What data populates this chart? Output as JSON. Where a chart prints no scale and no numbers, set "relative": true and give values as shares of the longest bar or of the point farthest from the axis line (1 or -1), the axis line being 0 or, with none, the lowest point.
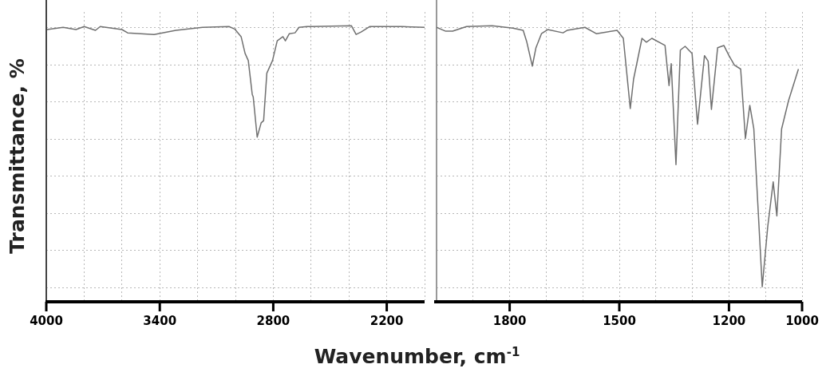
{
  "chart_data": [
    {
      "type": "line",
      "xlabel": "Wavenumber, cm$^{-1}$",
      "ylabel": "Transmittance, %",
      "relative": true,
      "grid": true,
      "color": "#707070",
      "xlim": [
        4000,
        2000
      ],
      "xticks": [
        4000,
        {
          "value": 3800,
          "label": null
        },
        {
          "value": 3600,
          "label": null
        },
        3400,
        {
          "value": 3200,
          "label": null
        },
        {
          "value": 3000,
          "label": null
        },
        2800,
        {
          "value": 2600,
          "label": null
        },
        {
          "value": 2400,
          "label": null
        },
        2200,
        {
          "value": 2000,
          "label": null
        }
      ],
      "x": [
        3996,
        3911,
        3843,
        3800,
        3740,
        3715,
        3600,
        3570,
        3430,
        3315,
        3174,
        3034,
        3004,
        2970,
        2949,
        2932,
        2911,
        2906,
        2885,
        2864,
        2851,
        2834,
        2804,
        2779,
        2749,
        2736,
        2715,
        2685,
        2664,
        2621,
        2600,
        2387,
        2362,
        2336,
        2289,
        2119,
        2000
      ],
      "values": [
        0.986,
        0.994,
        0.986,
        0.997,
        0.983,
        0.997,
        0.986,
        0.974,
        0.968,
        0.983,
        0.994,
        0.997,
        0.988,
        0.96,
        0.899,
        0.873,
        0.749,
        0.741,
        0.594,
        0.646,
        0.654,
        0.827,
        0.873,
        0.945,
        0.96,
        0.945,
        0.971,
        0.974,
        0.994,
        0.997,
        0.997,
        1,
        0.968,
        0.977,
        0.997,
        0.997,
        0.994
      ]
    },
    {
      "type": "line",
      "relative": true,
      "grid": true,
      "color": "#707070",
      "tick_labels": "x",
      "xlim": [
        2000,
        1000
      ],
      "xticks": [
        {
          "value": 2000,
          "label": null
        },
        {
          "value": 1900,
          "label": null
        },
        1800,
        {
          "value": 1700,
          "label": null
        },
        {
          "value": 1600,
          "label": null
        },
        1500,
        {
          "value": 1400,
          "label": null
        },
        {
          "value": 1300,
          "label": null
        },
        1200,
        {
          "value": 1100,
          "label": null
        },
        1000
      ],
      "ref_lines": [
        {
          "axis": "x",
          "value": 2000,
          "color": "#999999"
        }
      ],
      "x": [
        2000,
        1975,
        1956,
        1918,
        1848,
        1791,
        1763,
        1753,
        1738,
        1728,
        1713,
        1696,
        1654,
        1643,
        1594,
        1563,
        1506,
        1489,
        1470,
        1461,
        1438,
        1426,
        1411,
        1375,
        1364,
        1358,
        1345,
        1333,
        1320,
        1301,
        1286,
        1267,
        1257,
        1248,
        1231,
        1214,
        1200,
        1185,
        1168,
        1155,
        1143,
        1132,
        1109,
        1094,
        1079,
        1069,
        1056,
        1037,
        1010
      ],
      "values": [
        0.994,
        0.98,
        0.98,
        0.997,
        1,
        0.991,
        0.983,
        0.94,
        0.853,
        0.92,
        0.971,
        0.986,
        0.974,
        0.983,
        0.994,
        0.971,
        0.983,
        0.954,
        0.698,
        0.805,
        0.954,
        0.94,
        0.954,
        0.928,
        0.782,
        0.862,
        0.494,
        0.911,
        0.925,
        0.899,
        0.641,
        0.891,
        0.871,
        0.695,
        0.92,
        0.928,
        0.891,
        0.856,
        0.842,
        0.589,
        0.71,
        0.624,
        0.049,
        0.267,
        0.431,
        0.307,
        0.624,
        0.727,
        0.842
      ]
    }
  ]
}
